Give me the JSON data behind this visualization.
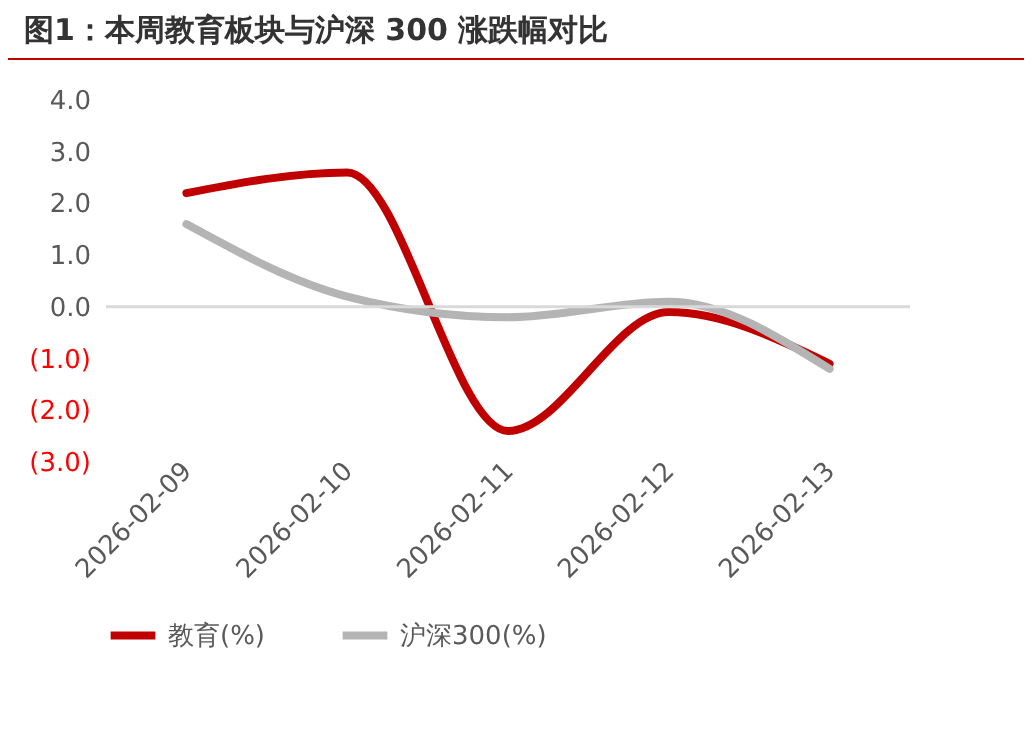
{
  "chart_data": {
    "type": "line",
    "title": "图1：本周教育板块与沪深 300 涨跌幅对比",
    "categories": [
      "2026-02-09",
      "2026-02-10",
      "2026-02-11",
      "2026-02-12",
      "2026-02-13"
    ],
    "series": [
      {
        "name": "教育(%)",
        "color": "#c00000",
        "values": [
          2.2,
          2.6,
          -2.4,
          -0.1,
          -1.1
        ]
      },
      {
        "name": "沪深300(%)",
        "color": "#b4b4b4",
        "values": [
          1.6,
          0.2,
          -0.2,
          0.1,
          -1.2
        ]
      }
    ],
    "ylim": [
      -3,
      4
    ],
    "yticks": [
      {
        "value": 4,
        "label": "4.0"
      },
      {
        "value": 3,
        "label": "3.0"
      },
      {
        "value": 2,
        "label": "2.0"
      },
      {
        "value": 1,
        "label": "1.0"
      },
      {
        "value": 0,
        "label": "0.0"
      },
      {
        "value": -1,
        "label": "(1.0)"
      },
      {
        "value": -2,
        "label": "(2.0)"
      },
      {
        "value": -3,
        "label": "(3.0)"
      }
    ],
    "ref_lines": [
      {
        "axis": "y",
        "value": 0,
        "color": "#d9d9d9"
      }
    ],
    "grid": false,
    "legend": "bottom",
    "marker": "none",
    "line_style": "solid"
  }
}
